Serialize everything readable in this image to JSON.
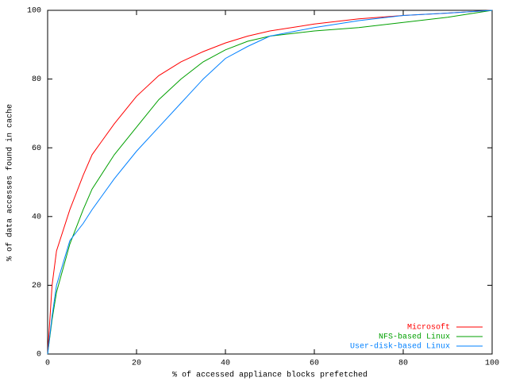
{
  "chart_data": {
    "type": "line",
    "x_label": "% of accessed appliance blocks prefetched",
    "y_label": "% of data accesses found in cache",
    "x": [
      0,
      1,
      2,
      5,
      8,
      10,
      15,
      20,
      25,
      30,
      35,
      40,
      45,
      50,
      60,
      70,
      80,
      90,
      100
    ],
    "series": [
      {
        "name": "Microsoft",
        "color": "#ff0000",
        "values": [
          0,
          20,
          30,
          42,
          52,
          58,
          67,
          75,
          81,
          85,
          88,
          90.5,
          92.5,
          94,
          96,
          97.5,
          98.5,
          99.2,
          100
        ]
      },
      {
        "name": "NFS-based Linux",
        "color": "#00a000",
        "values": [
          0,
          10,
          18,
          32,
          42,
          48,
          58,
          66,
          74,
          80,
          85,
          88.5,
          91,
          92.5,
          94,
          95,
          96.5,
          98,
          100
        ]
      },
      {
        "name": "User-disk-based Linux",
        "color": "#0080ff",
        "values": [
          0,
          11,
          20,
          33,
          38,
          42,
          51,
          59,
          66,
          73,
          80,
          86,
          89.5,
          92.5,
          95,
          97,
          98.5,
          99.2,
          100
        ]
      }
    ],
    "xlim": [
      0,
      100
    ],
    "xticks": [
      0,
      20,
      40,
      60,
      80,
      100
    ],
    "ylim": [
      0,
      100
    ],
    "yticks": [
      0,
      20,
      40,
      60,
      80,
      100
    ],
    "legend": "lower right"
  }
}
